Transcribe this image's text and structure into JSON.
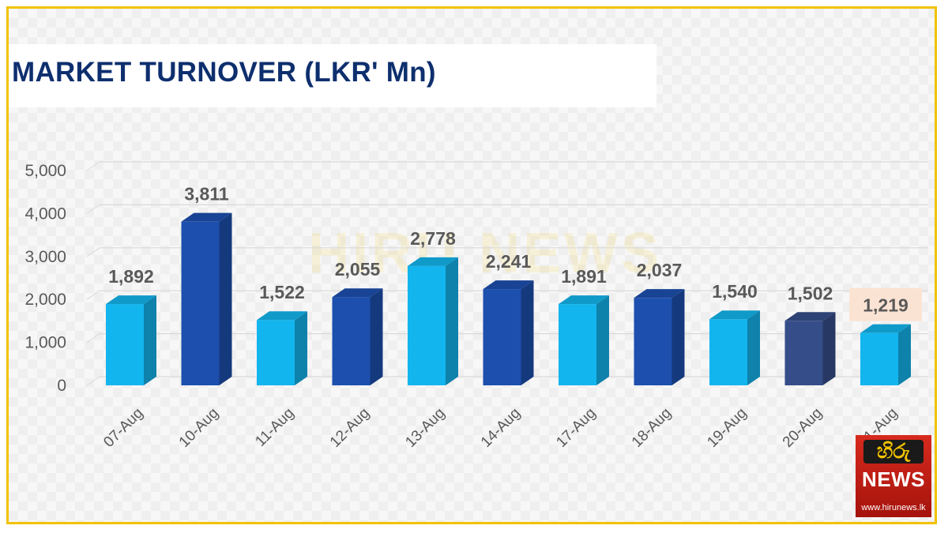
{
  "watermark": "HIRU NEWS",
  "logo": {
    "top": "හිරු",
    "brand": "NEWS",
    "url": "www.hirunews.lk"
  },
  "colors": {
    "bar_light": "#13b5ee",
    "bar_dark": "#1d4fae",
    "bar_slate": "#354e8a",
    "title": "#0e2f6e",
    "frame": "#f2c200",
    "highlight_label_bg": "#fbe3d3"
  },
  "chart_data": {
    "type": "bar",
    "title": "MARKET TURNOVER (LKR' Mn)",
    "xlabel": "",
    "ylabel": "",
    "categories": [
      "07-Aug",
      "10-Aug",
      "11-Aug",
      "12-Aug",
      "13-Aug",
      "14-Aug",
      "17-Aug",
      "18-Aug",
      "19-Aug",
      "20-Aug",
      "21-Aug"
    ],
    "values": [
      1892,
      3811,
      1522,
      2055,
      2778,
      2241,
      1891,
      2037,
      1540,
      1502,
      1219
    ],
    "value_labels": [
      "1,892",
      "3,811",
      "1,522",
      "2,055",
      "2,778",
      "2,241",
      "1,891",
      "2,037",
      "1,540",
      "1,502",
      "1,219"
    ],
    "bar_colors": [
      "light",
      "dark",
      "light",
      "dark",
      "light",
      "dark",
      "light",
      "dark",
      "light",
      "slate",
      "light"
    ],
    "highlight_index": 10,
    "yticks": [
      0,
      1000,
      2000,
      3000,
      4000,
      5000
    ],
    "ytick_labels": [
      "0",
      "1,000",
      "2,000",
      "3,000",
      "4,000",
      "5,000"
    ],
    "ylim": [
      0,
      5000
    ],
    "grid": true,
    "legend": "none"
  }
}
